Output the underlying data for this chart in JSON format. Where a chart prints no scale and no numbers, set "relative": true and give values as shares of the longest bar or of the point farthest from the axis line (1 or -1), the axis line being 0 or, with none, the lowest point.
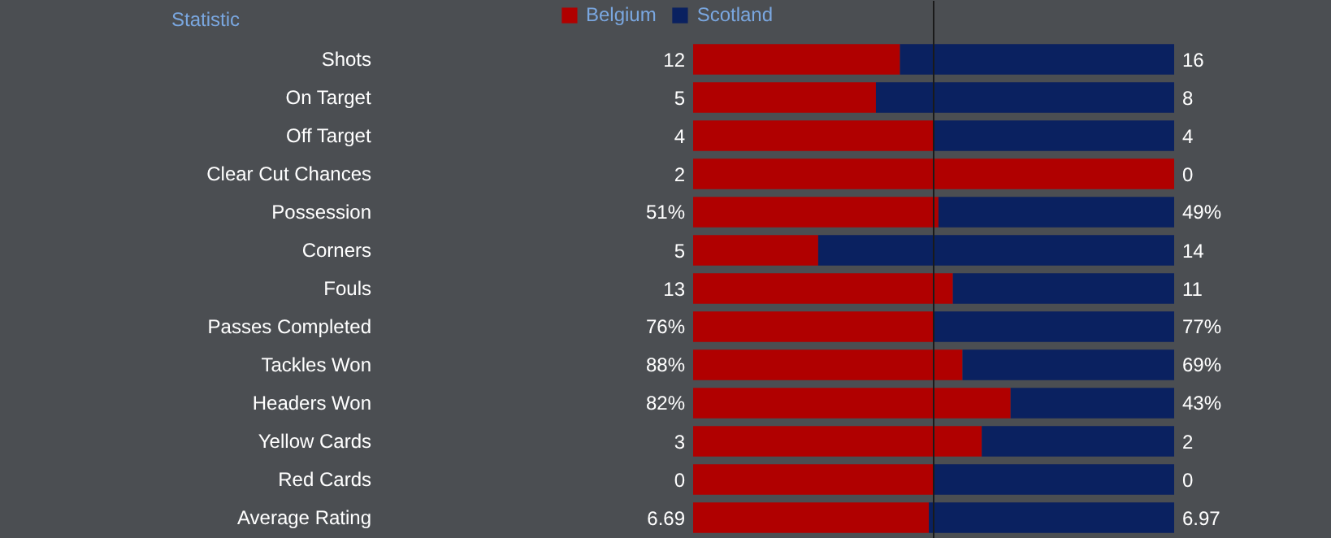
{
  "chart_data": {
    "type": "bar",
    "orientation": "horizontal",
    "stacked": true,
    "relative": true,
    "legend": "top",
    "grid": false,
    "categories": [
      "Shots",
      "On Target",
      "Off Target",
      "Clear Cut Chances",
      "Possession",
      "Corners",
      "Fouls",
      "Passes Completed",
      "Tackles Won",
      "Headers Won",
      "Yellow Cards",
      "Red Cards",
      "Average Rating"
    ],
    "series": [
      {
        "name": "Belgium",
        "color": "#b00000",
        "values": [
          0.43,
          0.38,
          0.5,
          1,
          0.51,
          0.26,
          0.54,
          0.5,
          0.56,
          0.66,
          0.6,
          0.5,
          0.49
        ]
      },
      {
        "name": "Scotland",
        "color": "#0a2160",
        "values": [
          0.57,
          0.62,
          0.5,
          0,
          0.49,
          0.74,
          0.46,
          0.5,
          0.44,
          0.34,
          0.4,
          0.5,
          0.51
        ]
      }
    ],
    "annotations": [
      "12",
      "16",
      "5",
      "8",
      "4",
      "4",
      "2",
      "0",
      "51%",
      "49%",
      "5",
      "14",
      "13",
      "11",
      "76%",
      "77%",
      "88%",
      "69%",
      "82%",
      "43%",
      "3",
      "2",
      "0",
      "0",
      "6.69",
      "6.97",
      "Statistic"
    ],
    "ref_lines": [
      {
        "axis": "x",
        "value": 0.5,
        "color": "#1a1a1a"
      }
    ]
  }
}
